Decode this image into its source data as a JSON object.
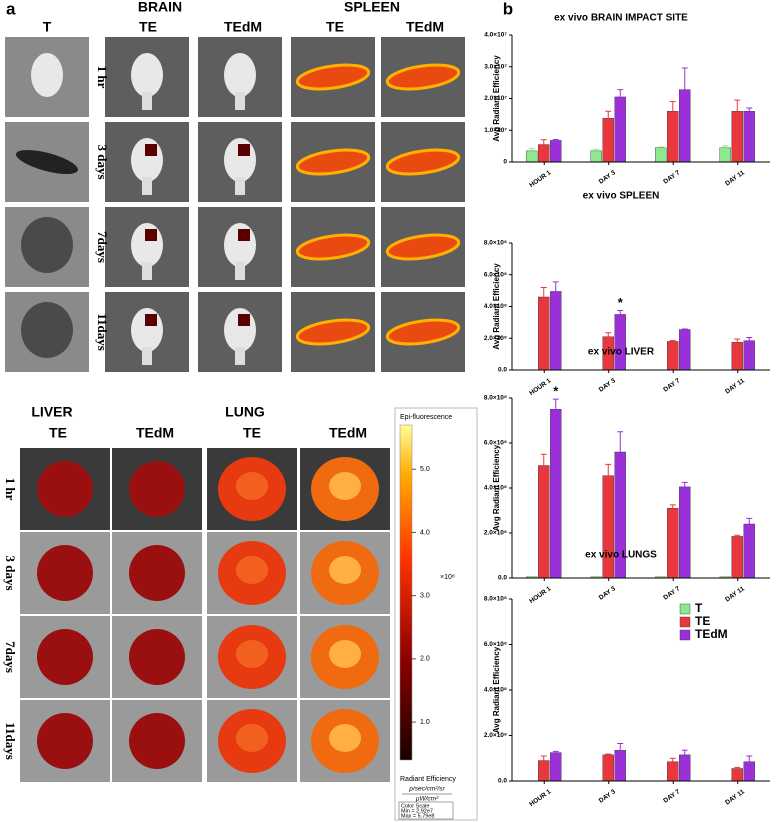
{
  "panel_a": {
    "label": "a",
    "brain": "BRAIN",
    "spleen": "SPLEEN",
    "brain_columns": [
      "T",
      "TE",
      "TEdM"
    ],
    "spleen_columns": [
      "TE",
      "TEdM"
    ],
    "brain_rows": [
      "1 hr",
      "3 days",
      "7days",
      "11days"
    ],
    "liver": "LIVER",
    "lung": "LUNG",
    "liver_columns": [
      "TE",
      "TEdM"
    ],
    "lung_columns": [
      "TE",
      "TEdM"
    ],
    "lower_rows": [
      "1 hr",
      "3 days",
      "7days",
      "11days"
    ],
    "colorbar": {
      "title": "Epi-fluorescence",
      "exponent": "×10⁸",
      "lim": [
        0.4,
        5.7
      ],
      "ticks": [
        {
          "value": 1,
          "label": "1.0"
        },
        {
          "value": 2,
          "label": "2.0"
        },
        {
          "value": 3,
          "label": "3.0"
        },
        {
          "value": 4,
          "label": "4.0"
        },
        {
          "value": 5,
          "label": "5.0"
        }
      ],
      "unit_title": "Radiant Efficiency",
      "unit_top": "p/sec/cm²/sr",
      "unit_bottom": "µW/cm²",
      "scale_title": "Color Scale",
      "min": "Min = 2.92e7",
      "max": "Max = 5.79e8"
    }
  },
  "panel_b_label": "b",
  "chart_data": [
    {
      "type": "bar",
      "title": "ex vivo BRAIN IMPACT SITE",
      "ylabel": "Avg Radiant Efficiency",
      "categories": [
        "HOUR 1",
        "DAY 3",
        "DAY 7",
        "DAY 11"
      ],
      "series": [
        {
          "color": "#8ee88e",
          "values": [
            3500000,
            3500000,
            4500000,
            4500000
          ],
          "errors": [
            800000,
            500000,
            200000,
            600000
          ]
        },
        {
          "color": "#e8383d",
          "values": [
            5500000,
            13800000,
            16000000,
            16000000
          ],
          "errors": [
            1500000,
            2200000,
            3000000,
            3500000
          ]
        },
        {
          "color": "#9b30d9",
          "values": [
            6800000,
            20500000,
            22800000,
            16000000
          ],
          "errors": [
            300000,
            2300000,
            6800000,
            1000000
          ]
        }
      ],
      "ylim": [
        0,
        40000000
      ],
      "yticks": [
        0,
        {
          "value": 10000000,
          "label": "1.0×10⁷"
        },
        {
          "value": 20000000,
          "label": "2.0×10⁷"
        },
        {
          "value": 30000000,
          "label": "3.0×10⁷"
        },
        {
          "value": 40000000,
          "label": "4.0×10⁷"
        }
      ]
    },
    {
      "type": "bar",
      "title": "ex vivo SPLEEN",
      "ylabel": "Avg Radiant Efficiency",
      "categories": [
        "HOUR 1",
        "DAY 3",
        "DAY 7",
        "DAY 11"
      ],
      "series": [
        {
          "color": "#8ee88e",
          "values": [
            0,
            0,
            0,
            0
          ],
          "errors": [
            0,
            0,
            0,
            0
          ]
        },
        {
          "color": "#e8383d",
          "values": [
            460000000,
            210000000,
            180000000,
            175000000
          ],
          "errors": [
            60000000,
            25000000,
            5000000,
            20000000
          ]
        },
        {
          "color": "#9b30d9",
          "values": [
            495000000,
            350000000,
            255000000,
            185000000
          ],
          "errors": [
            60000000,
            25000000,
            3000000,
            20000000
          ]
        }
      ],
      "ylim": [
        0,
        800000000
      ],
      "annotation": "*",
      "yticks": [
        {
          "value": 0,
          "label": "0.0"
        },
        {
          "value": 200000000,
          "label": "2.0×10⁸"
        },
        {
          "value": 400000000,
          "label": "4.0×10⁸"
        },
        {
          "value": 600000000,
          "label": "6.0×10⁸"
        },
        {
          "value": 800000000,
          "label": "8.0×10⁸"
        }
      ]
    },
    {
      "type": "bar",
      "title": "ex vivo LIVER",
      "ylabel": "Avg Radiant Efficiency",
      "categories": [
        "HOUR 1",
        "DAY 3",
        "DAY 7",
        "DAY 11"
      ],
      "series": [
        {
          "color": "#8ee88e",
          "values": [
            5000000,
            5000000,
            5000000,
            5000000
          ],
          "errors": [
            0,
            0,
            0,
            0
          ]
        },
        {
          "color": "#e8383d",
          "values": [
            500000000,
            455000000,
            310000000,
            185000000
          ],
          "errors": [
            50000000,
            50000000,
            15000000,
            5000000
          ]
        },
        {
          "color": "#9b30d9",
          "values": [
            750000000,
            560000000,
            405000000,
            240000000
          ],
          "errors": [
            45000000,
            90000000,
            20000000,
            25000000
          ]
        }
      ],
      "ylim": [
        0,
        800000000
      ],
      "annotation": "*",
      "yticks": [
        {
          "value": 0,
          "label": "0.0"
        },
        {
          "value": 200000000,
          "label": "2.0×10⁸"
        },
        {
          "value": 400000000,
          "label": "4.0×10⁸"
        },
        {
          "value": 600000000,
          "label": "6.0×10⁸"
        },
        {
          "value": 800000000,
          "label": "8.0×10⁸"
        }
      ]
    },
    {
      "type": "bar",
      "title": "ex vivo LUNGS",
      "ylabel": "Avg Radiant Efficiency",
      "categories": [
        "HOUR 1",
        "DAY 3",
        "DAY 7",
        "DAY 11"
      ],
      "legend": "upper right",
      "series": [
        {
          "name": "T",
          "color": "#8ee88e",
          "values": [
            0,
            0,
            0,
            0
          ],
          "errors": [
            0,
            0,
            0,
            0
          ]
        },
        {
          "name": "TE",
          "color": "#e8383d",
          "values": [
            90000000,
            115000000,
            85000000,
            55000000
          ],
          "errors": [
            20000000,
            3000000,
            15000000,
            5000000
          ]
        },
        {
          "name": "TEdM",
          "color": "#9b30d9",
          "values": [
            125000000,
            135000000,
            115000000,
            85000000
          ],
          "errors": [
            5000000,
            30000000,
            20000000,
            25000000
          ]
        }
      ],
      "ylim": [
        0,
        800000000
      ],
      "yticks": [
        {
          "value": 0,
          "label": "0.0"
        },
        {
          "value": 200000000,
          "label": "2.0×10⁸"
        },
        {
          "value": 400000000,
          "label": "4.0×10⁸"
        },
        {
          "value": 600000000,
          "label": "6.0×10⁸"
        },
        {
          "value": 800000000,
          "label": "8.0×10⁸"
        }
      ]
    }
  ]
}
